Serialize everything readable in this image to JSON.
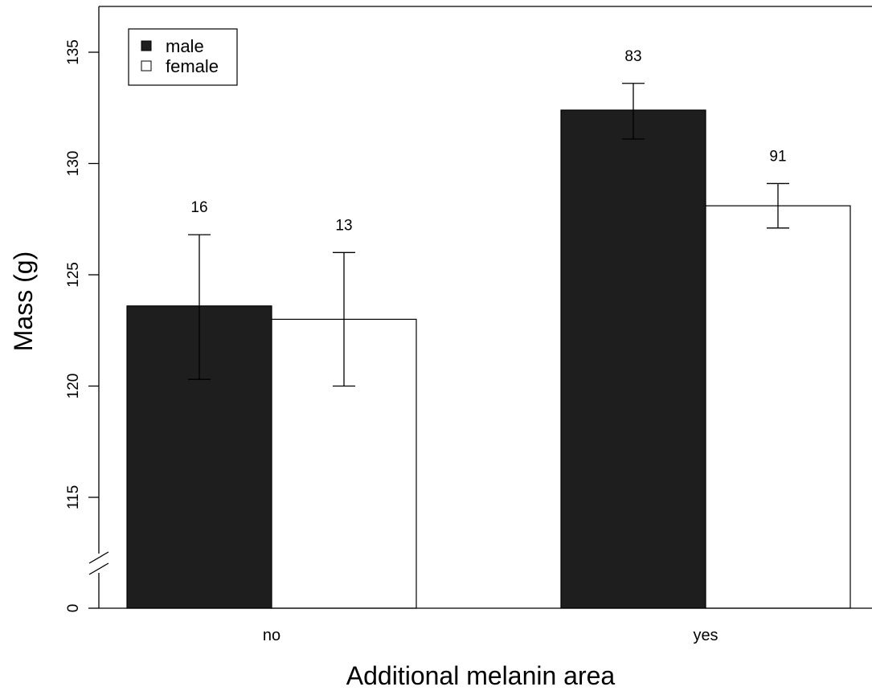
{
  "chart_data": {
    "type": "bar",
    "title": "",
    "xlabel": "Additional melanin area",
    "ylabel": "Mass (g)",
    "categories": [
      "no",
      "yes"
    ],
    "y_ticks": [
      0,
      115,
      120,
      125,
      130,
      135
    ],
    "ylim_visible": [
      112,
      136
    ],
    "axis_break": "between 0 and 115",
    "series": [
      {
        "name": "male",
        "color": "#1e1e1e",
        "values": [
          123.6,
          132.4
        ],
        "error_low": [
          120.3,
          131.1
        ],
        "error_high": [
          126.8,
          133.6
        ],
        "n": [
          "16",
          "83"
        ]
      },
      {
        "name": "female",
        "color": "#ffffff",
        "values": [
          123.0,
          128.1
        ],
        "error_low": [
          120.0,
          127.1
        ],
        "error_high": [
          126.0,
          129.1
        ],
        "n": [
          "13",
          "91"
        ]
      }
    ],
    "legend_position": "top-left",
    "grid": false
  }
}
